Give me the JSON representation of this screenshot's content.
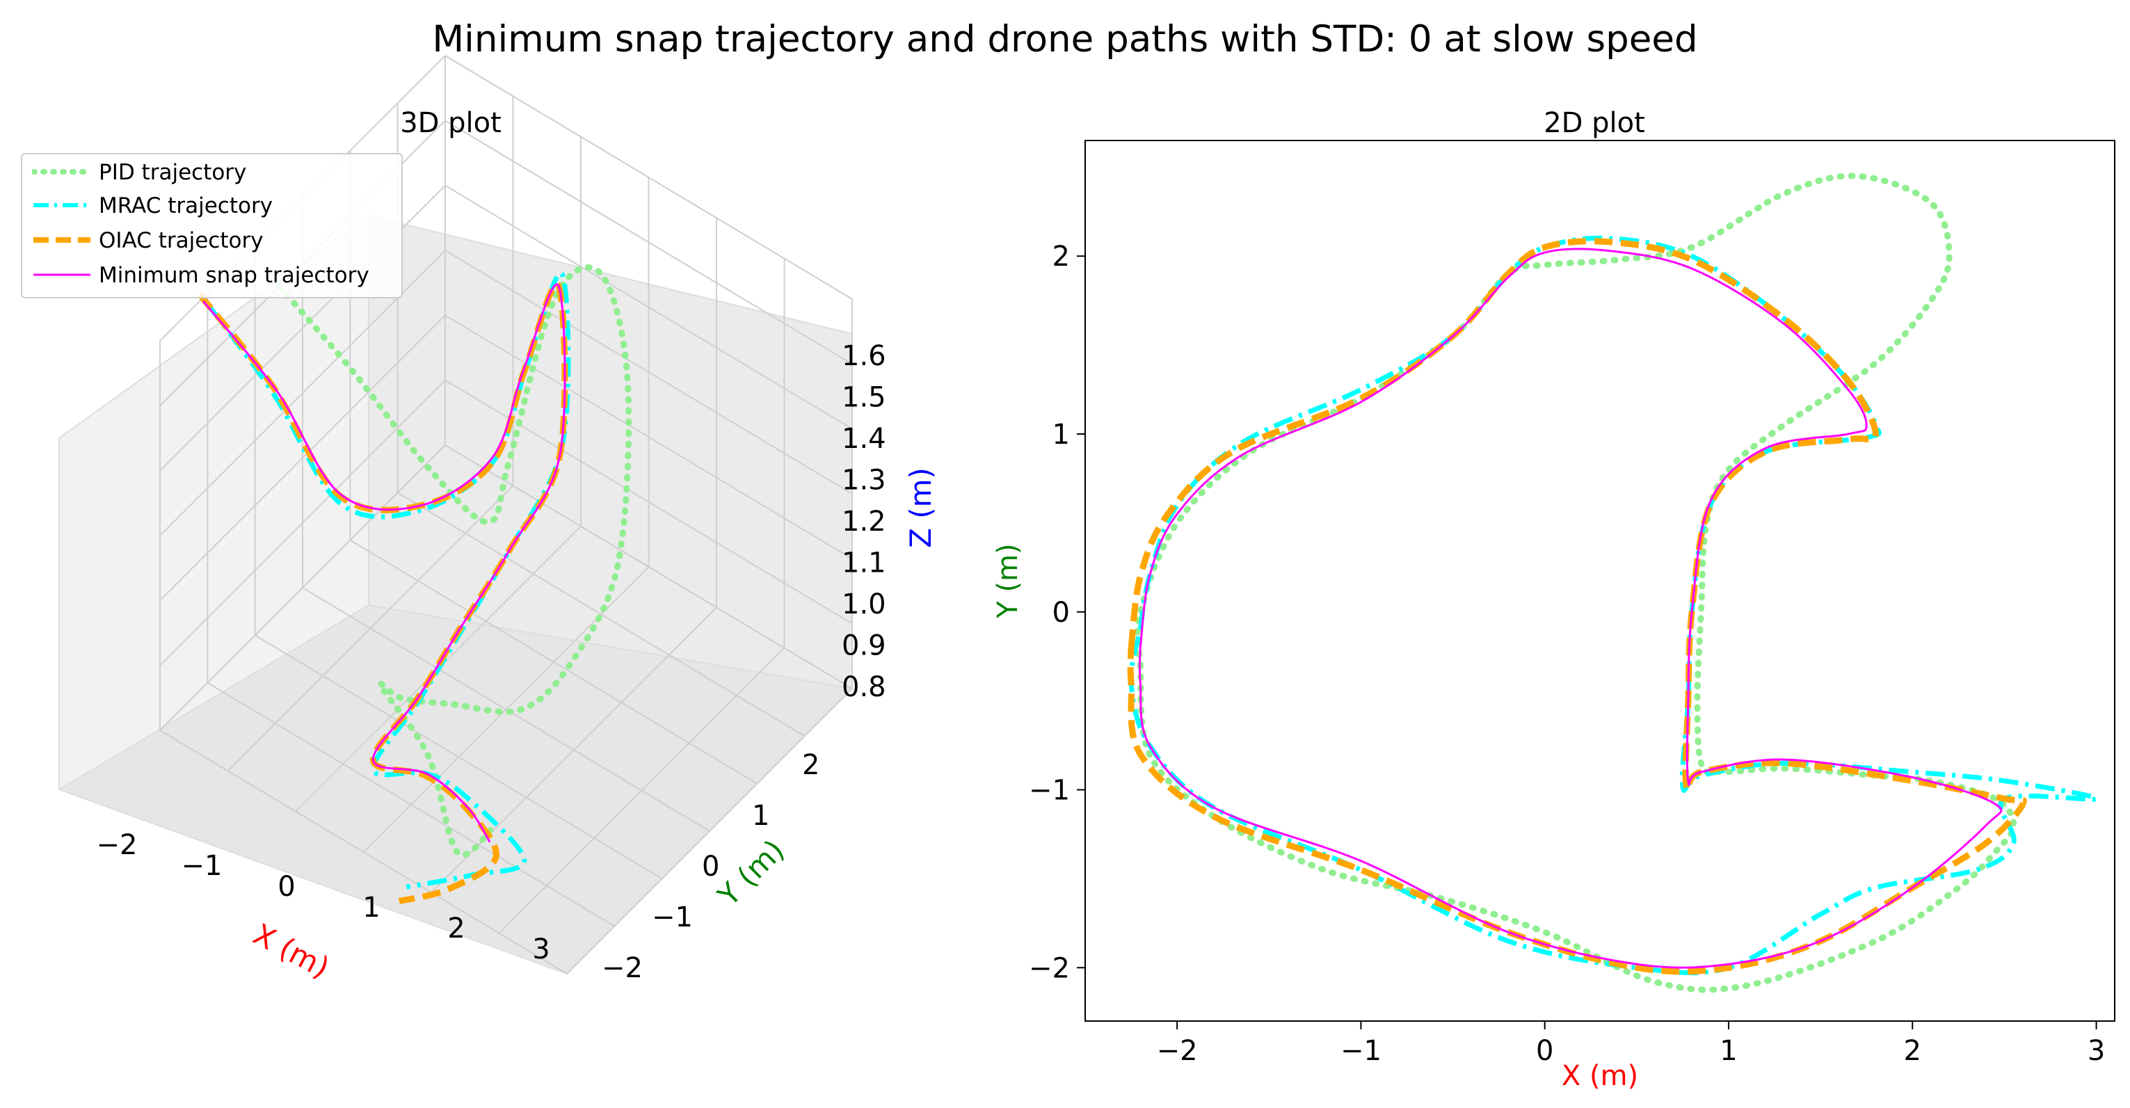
{
  "figure": {
    "title": "Minimum snap trajectory and drone paths with STD: 0 at slow speed"
  },
  "colors": {
    "pid": "#90ee90",
    "mrac": "#00ffff",
    "oiac": "#ffa500",
    "minsnap": "#ff00ff",
    "x_label": "#ff0000",
    "y_label": "#008000",
    "z_label": "#0000ff"
  },
  "chart_data": [
    {
      "type": "line",
      "title": "3D plot",
      "projection": "3d",
      "xlabel": "X (m)",
      "ylabel": "Y (m)",
      "zlabel": "Z (m)",
      "xticks": [
        "−2",
        "−1",
        "0",
        "1",
        "2",
        "3"
      ],
      "yticks": [
        "−2",
        "−1",
        "0",
        "1",
        "2"
      ],
      "zticks": [
        "1.6",
        "1.5",
        "1.4",
        "1.3",
        "1.2",
        "1.1",
        "1.0",
        "0.9",
        "0.8"
      ],
      "xlim": [
        -2.5,
        3.1
      ],
      "ylim": [
        -2.3,
        2.6
      ],
      "zlim": [
        0.78,
        1.62
      ],
      "grid": true,
      "legend": {
        "position": "top-left",
        "entries": [
          "PID trajectory",
          "MRAC trajectory",
          "OIAC trajectory",
          "Minimum snap trajectory"
        ]
      },
      "series": [
        {
          "name": "PID trajectory",
          "style": "dotted",
          "color_key": "pid",
          "points": [
            [
              -1.55,
              0.3,
              1.5
            ],
            [
              -1.05,
              0.95,
              1.28
            ],
            [
              -0.5,
              1.55,
              1.05
            ],
            [
              0.0,
              1.95,
              0.93
            ],
            [
              0.25,
              2.0,
              1.08
            ],
            [
              0.6,
              2.35,
              1.42
            ],
            [
              1.2,
              2.4,
              1.52
            ],
            [
              1.8,
              2.1,
              1.38
            ],
            [
              2.15,
              1.5,
              1.1
            ],
            [
              2.0,
              0.9,
              0.95
            ],
            [
              1.7,
              0.4,
              0.88
            ],
            [
              1.0,
              0.05,
              0.87
            ],
            [
              0.85,
              -0.6,
              0.95
            ],
            [
              0.85,
              -0.95,
              1.02
            ],
            [
              1.5,
              -0.95,
              0.93
            ],
            [
              2.3,
              -1.45,
              0.86
            ],
            [
              2.55,
              -1.15,
              0.9
            ]
          ]
        },
        {
          "name": "MRAC trajectory",
          "style": "dashdot",
          "color_key": "mrac",
          "points": [
            [
              -2.22,
              -0.1,
              1.45
            ],
            [
              -1.95,
              0.7,
              1.18
            ],
            [
              -1.35,
              1.1,
              0.95
            ],
            [
              -0.6,
              1.55,
              0.95
            ],
            [
              0.0,
              2.05,
              1.05
            ],
            [
              0.4,
              2.1,
              1.28
            ],
            [
              1.1,
              1.85,
              1.58
            ],
            [
              1.75,
              1.05,
              1.38
            ],
            [
              1.1,
              0.95,
              1.1
            ],
            [
              0.8,
              0.45,
              0.95
            ],
            [
              0.75,
              -0.2,
              0.88
            ],
            [
              0.78,
              -1.0,
              0.84
            ],
            [
              1.4,
              -0.85,
              0.87
            ],
            [
              2.0,
              -0.9,
              0.88
            ],
            [
              2.9,
              -1.05,
              0.85
            ],
            [
              2.5,
              -1.45,
              0.83
            ],
            [
              2.0,
              -1.95,
              0.82
            ]
          ]
        },
        {
          "name": "OIAC trajectory",
          "style": "dashed",
          "color_key": "oiac",
          "points": [
            [
              -2.25,
              -0.2,
              1.48
            ],
            [
              -1.95,
              0.68,
              1.2
            ],
            [
              -1.35,
              1.08,
              0.97
            ],
            [
              -0.6,
              1.55,
              0.96
            ],
            [
              0.0,
              2.03,
              1.05
            ],
            [
              0.4,
              2.08,
              1.28
            ],
            [
              1.05,
              1.85,
              1.55
            ],
            [
              1.75,
              1.0,
              1.36
            ],
            [
              1.1,
              0.95,
              1.1
            ],
            [
              0.8,
              0.45,
              0.96
            ],
            [
              0.75,
              -0.2,
              0.89
            ],
            [
              0.78,
              -1.0,
              0.86
            ],
            [
              1.4,
              -0.88,
              0.87
            ],
            [
              2.0,
              -0.92,
              0.86
            ],
            [
              2.55,
              -1.1,
              0.83
            ],
            [
              2.3,
              -1.6,
              0.8
            ],
            [
              1.9,
              -1.95,
              0.78
            ]
          ]
        },
        {
          "name": "Minimum snap trajectory",
          "style": "solid",
          "color_key": "minsnap",
          "points": [
            [
              -2.2,
              -0.2,
              1.47
            ],
            [
              -1.9,
              0.7,
              1.19
            ],
            [
              -1.35,
              1.1,
              0.97
            ],
            [
              -0.6,
              1.55,
              0.96
            ],
            [
              0.0,
              2.02,
              1.06
            ],
            [
              0.4,
              2.05,
              1.28
            ],
            [
              1.05,
              1.85,
              1.55
            ],
            [
              1.75,
              1.0,
              1.36
            ],
            [
              1.1,
              0.95,
              1.1
            ],
            [
              0.8,
              0.45,
              0.96
            ],
            [
              0.75,
              -0.2,
              0.89
            ],
            [
              0.78,
              -1.0,
              0.86
            ],
            [
              1.4,
              -0.85,
              0.87
            ],
            [
              2.0,
              -0.9,
              0.86
            ],
            [
              2.45,
              -1.08,
              0.85
            ]
          ]
        }
      ]
    },
    {
      "type": "line",
      "title": "2D plot",
      "xlabel": "X (m)",
      "ylabel": "Y (m)",
      "xticks": [
        -2,
        -1,
        0,
        1,
        2,
        3
      ],
      "yticks": [
        -2,
        -1,
        0,
        1,
        2
      ],
      "xlim": [
        -2.5,
        3.1
      ],
      "ylim": [
        -2.3,
        2.65
      ],
      "grid": false,
      "series": [
        {
          "name": "PID trajectory",
          "style": "dotted",
          "color_key": "pid",
          "points": [
            [
              -2.2,
              -0.3
            ],
            [
              -2.15,
              -0.8
            ],
            [
              -1.8,
              -1.15
            ],
            [
              -1.2,
              -1.45
            ],
            [
              -0.6,
              -1.6
            ],
            [
              0.0,
              -1.8
            ],
            [
              0.6,
              -2.08
            ],
            [
              1.1,
              -2.1
            ],
            [
              1.8,
              -1.85
            ],
            [
              2.25,
              -1.55
            ],
            [
              2.45,
              -1.35
            ],
            [
              2.55,
              -1.2
            ],
            [
              2.45,
              -1.05
            ],
            [
              2.1,
              -0.95
            ],
            [
              1.8,
              -0.92
            ],
            [
              1.3,
              -0.88
            ],
            [
              0.95,
              -0.9
            ],
            [
              0.85,
              -0.85
            ],
            [
              0.83,
              -0.5
            ],
            [
              0.85,
              0.0
            ],
            [
              0.88,
              0.5
            ],
            [
              1.0,
              0.8
            ],
            [
              1.3,
              1.05
            ],
            [
              1.8,
              1.4
            ],
            [
              2.1,
              1.75
            ],
            [
              2.2,
              2.0
            ],
            [
              2.1,
              2.3
            ],
            [
              1.7,
              2.45
            ],
            [
              1.3,
              2.35
            ],
            [
              0.8,
              2.05
            ],
            [
              0.4,
              1.98
            ],
            [
              0.0,
              1.95
            ],
            [
              -0.2,
              1.9
            ],
            [
              -0.5,
              1.55
            ],
            [
              -1.0,
              1.2
            ],
            [
              -1.6,
              0.9
            ],
            [
              -2.0,
              0.5
            ],
            [
              -2.2,
              0.0
            ],
            [
              -2.2,
              -0.3
            ]
          ]
        },
        {
          "name": "MRAC trajectory",
          "style": "dashdot",
          "color_key": "mrac",
          "points": [
            [
              -2.2,
              -0.1
            ],
            [
              -2.15,
              0.2
            ],
            [
              -2.0,
              0.6
            ],
            [
              -1.65,
              0.95
            ],
            [
              -1.0,
              1.25
            ],
            [
              -0.5,
              1.55
            ],
            [
              -0.2,
              1.9
            ],
            [
              0.0,
              2.05
            ],
            [
              0.35,
              2.1
            ],
            [
              0.8,
              2.0
            ],
            [
              1.3,
              1.65
            ],
            [
              1.65,
              1.3
            ],
            [
              1.8,
              1.05
            ],
            [
              1.75,
              0.98
            ],
            [
              1.2,
              0.9
            ],
            [
              0.9,
              0.6
            ],
            [
              0.8,
              0.0
            ],
            [
              0.78,
              -0.5
            ],
            [
              0.75,
              -0.98
            ],
            [
              0.85,
              -0.92
            ],
            [
              1.3,
              -0.85
            ],
            [
              2.0,
              -0.9
            ],
            [
              2.5,
              -0.95
            ],
            [
              3.0,
              -1.05
            ],
            [
              2.5,
              -1.05
            ],
            [
              2.55,
              -1.3
            ],
            [
              2.35,
              -1.45
            ],
            [
              1.8,
              -1.55
            ],
            [
              1.5,
              -1.7
            ],
            [
              1.0,
              -2.0
            ],
            [
              0.5,
              -2.0
            ],
            [
              -0.2,
              -1.85
            ],
            [
              -1.0,
              -1.45
            ],
            [
              -1.8,
              -1.1
            ],
            [
              -2.15,
              -0.75
            ],
            [
              -2.25,
              -0.4
            ],
            [
              -2.2,
              -0.1
            ]
          ]
        },
        {
          "name": "OIAC trajectory",
          "style": "dashed",
          "color_key": "oiac",
          "points": [
            [
              -2.25,
              -0.2
            ],
            [
              -2.2,
              0.2
            ],
            [
              -2.05,
              0.55
            ],
            [
              -1.7,
              0.9
            ],
            [
              -1.0,
              1.2
            ],
            [
              -0.5,
              1.55
            ],
            [
              -0.2,
              1.9
            ],
            [
              0.0,
              2.05
            ],
            [
              0.35,
              2.08
            ],
            [
              0.8,
              1.98
            ],
            [
              1.3,
              1.65
            ],
            [
              1.65,
              1.3
            ],
            [
              1.8,
              1.0
            ],
            [
              1.65,
              0.97
            ],
            [
              1.2,
              0.9
            ],
            [
              0.9,
              0.6
            ],
            [
              0.8,
              0.0
            ],
            [
              0.78,
              -0.5
            ],
            [
              0.77,
              -0.98
            ],
            [
              0.85,
              -0.9
            ],
            [
              1.3,
              -0.85
            ],
            [
              2.0,
              -0.95
            ],
            [
              2.5,
              -1.05
            ],
            [
              2.6,
              -1.08
            ],
            [
              2.4,
              -1.3
            ],
            [
              2.0,
              -1.55
            ],
            [
              1.5,
              -1.85
            ],
            [
              1.0,
              -2.0
            ],
            [
              0.5,
              -2.0
            ],
            [
              -0.2,
              -1.8
            ],
            [
              -1.0,
              -1.45
            ],
            [
              -1.8,
              -1.15
            ],
            [
              -2.2,
              -0.8
            ],
            [
              -2.25,
              -0.4
            ],
            [
              -2.25,
              -0.2
            ]
          ]
        },
        {
          "name": "Minimum snap trajectory",
          "style": "solid",
          "color_key": "minsnap",
          "points": [
            [
              -2.2,
              -0.2
            ],
            [
              -2.15,
              0.2
            ],
            [
              -2.0,
              0.55
            ],
            [
              -1.65,
              0.88
            ],
            [
              -1.0,
              1.18
            ],
            [
              -0.5,
              1.55
            ],
            [
              -0.2,
              1.88
            ],
            [
              0.0,
              2.02
            ],
            [
              0.35,
              2.03
            ],
            [
              0.8,
              1.93
            ],
            [
              1.3,
              1.62
            ],
            [
              1.65,
              1.25
            ],
            [
              1.75,
              1.05
            ],
            [
              1.65,
              1.0
            ],
            [
              1.2,
              0.92
            ],
            [
              0.9,
              0.62
            ],
            [
              0.8,
              0.0
            ],
            [
              0.78,
              -0.5
            ],
            [
              0.78,
              -0.95
            ],
            [
              0.85,
              -0.9
            ],
            [
              1.3,
              -0.83
            ],
            [
              2.0,
              -0.93
            ],
            [
              2.45,
              -1.08
            ],
            [
              2.4,
              -1.2
            ],
            [
              2.0,
              -1.55
            ],
            [
              1.5,
              -1.85
            ],
            [
              1.0,
              -1.98
            ],
            [
              0.5,
              -1.98
            ],
            [
              -0.2,
              -1.8
            ],
            [
              -1.0,
              -1.4
            ],
            [
              -1.8,
              -1.1
            ],
            [
              -2.15,
              -0.75
            ],
            [
              -2.2,
              -0.4
            ],
            [
              -2.2,
              -0.2
            ]
          ]
        }
      ]
    }
  ]
}
